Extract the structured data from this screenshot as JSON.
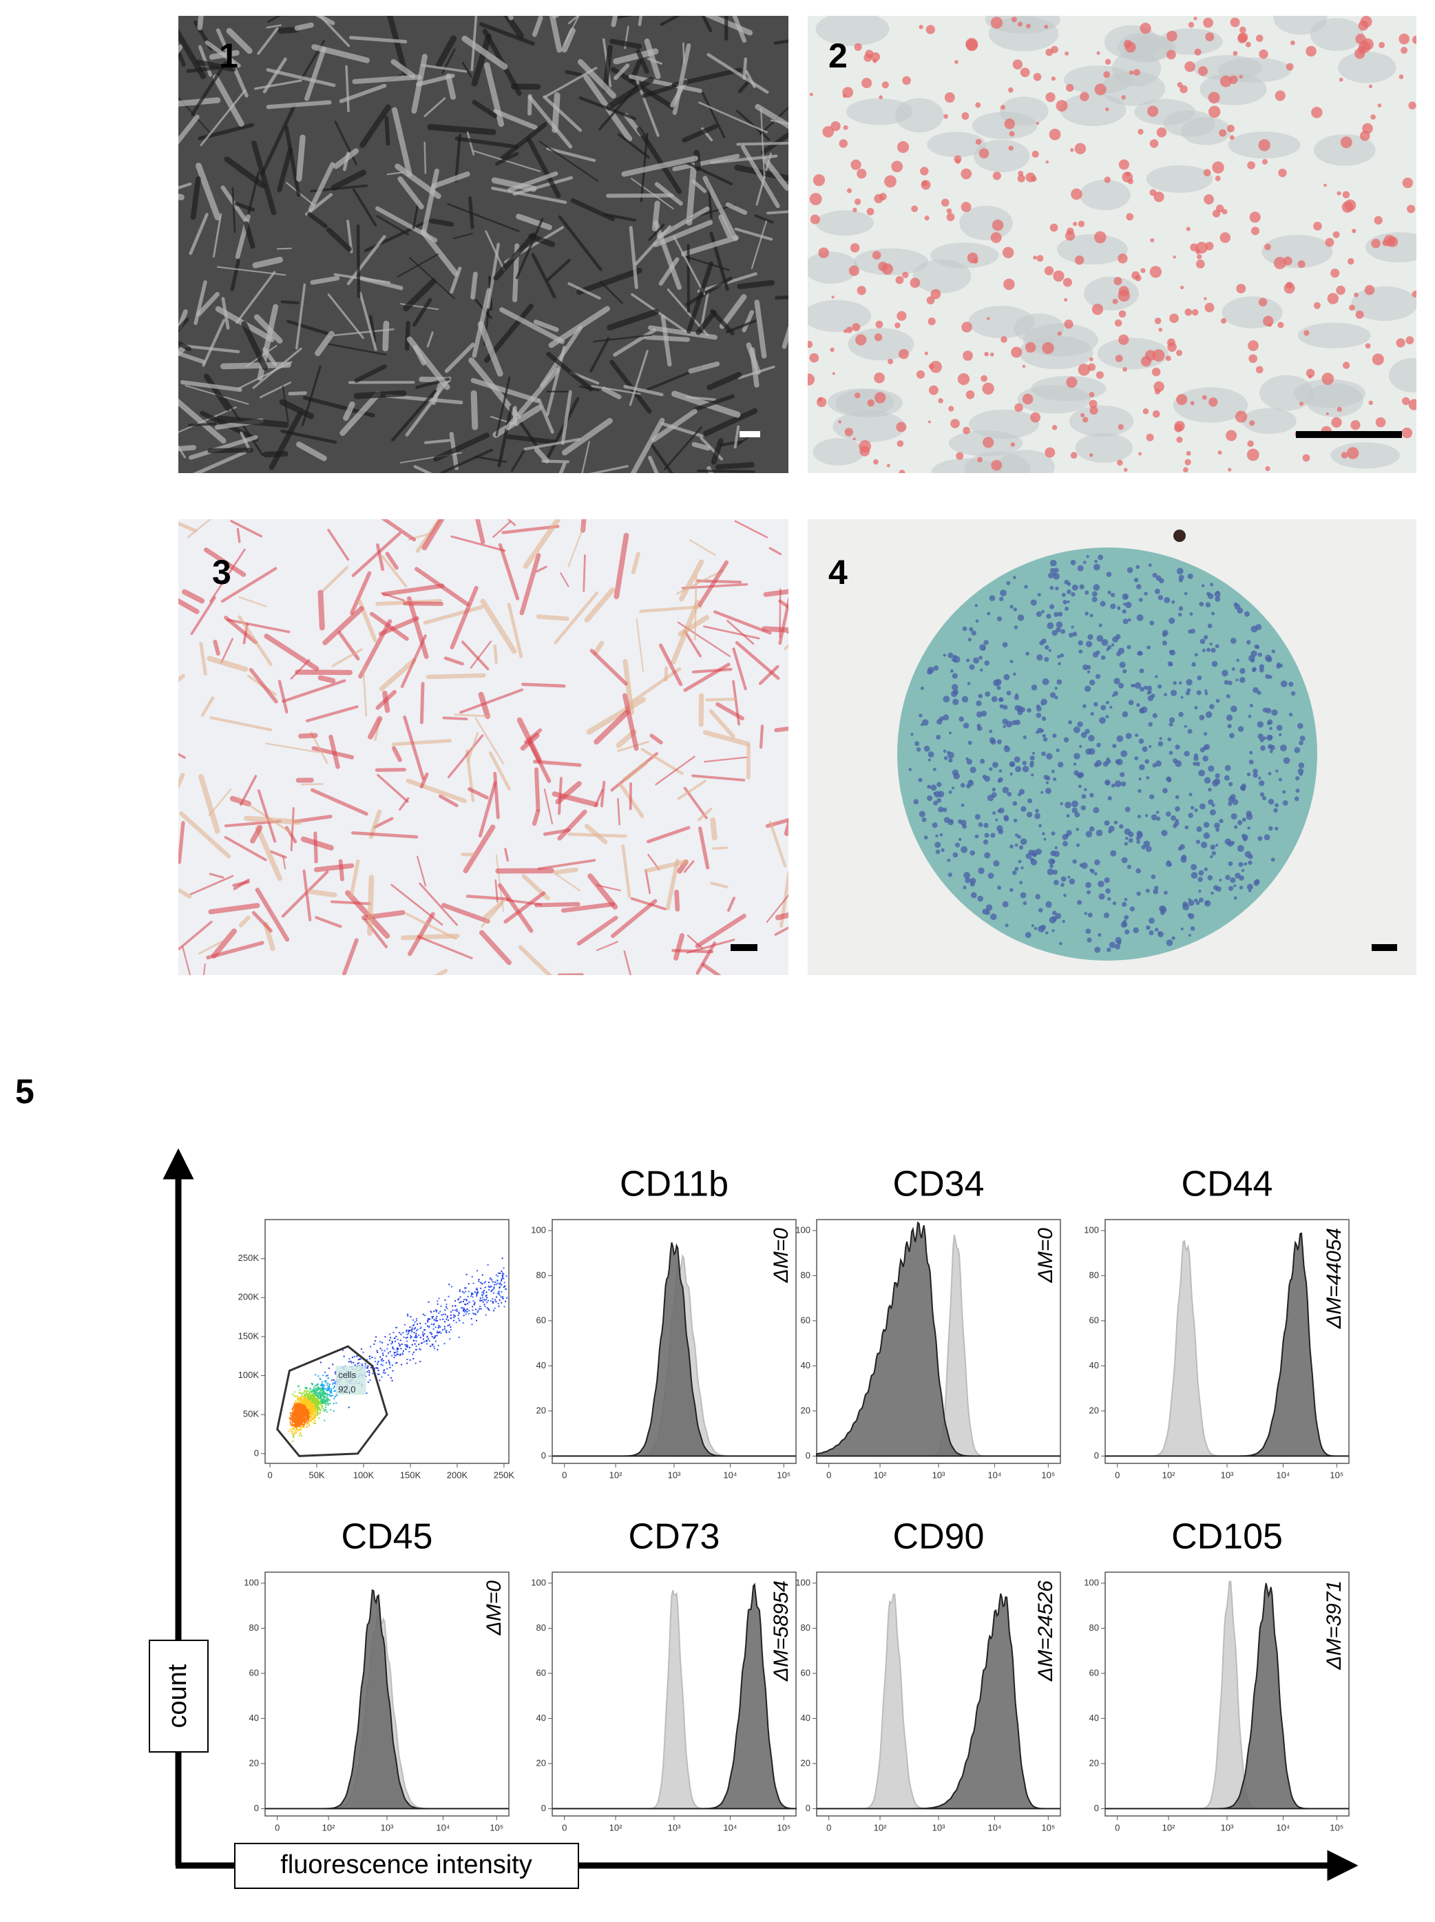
{
  "panels": [
    {
      "label": "1"
    },
    {
      "label": "2"
    },
    {
      "label": "3"
    },
    {
      "label": "4"
    }
  ],
  "flow": {
    "label": "5",
    "y_axis_label": "count",
    "x_axis_label": "fluorescence intensity",
    "scatter": {
      "xticks": [
        "0",
        "50K",
        "100K",
        "150K",
        "200K",
        "250K"
      ],
      "yticks": [
        "0",
        "50K",
        "100K",
        "150K",
        "200K",
        "250K"
      ],
      "gate_label": "cells",
      "gate_value": "92,0"
    },
    "hist_xticks": [
      "0",
      "10²",
      "10³",
      "10⁴",
      "10⁵"
    ],
    "hist_yticks": [
      0,
      20,
      40,
      60,
      80,
      100
    ],
    "histograms": [
      {
        "title": "CD11b",
        "delta": "ΔM=0"
      },
      {
        "title": "CD34",
        "delta": "ΔM=0"
      },
      {
        "title": "CD44",
        "delta": "ΔM=44054"
      },
      {
        "title": "CD45",
        "delta": "ΔM=0"
      },
      {
        "title": "CD73",
        "delta": "ΔM=58954"
      },
      {
        "title": "CD90",
        "delta": "ΔM=24526"
      },
      {
        "title": "CD105",
        "delta": "ΔM=3971"
      }
    ]
  }
}
